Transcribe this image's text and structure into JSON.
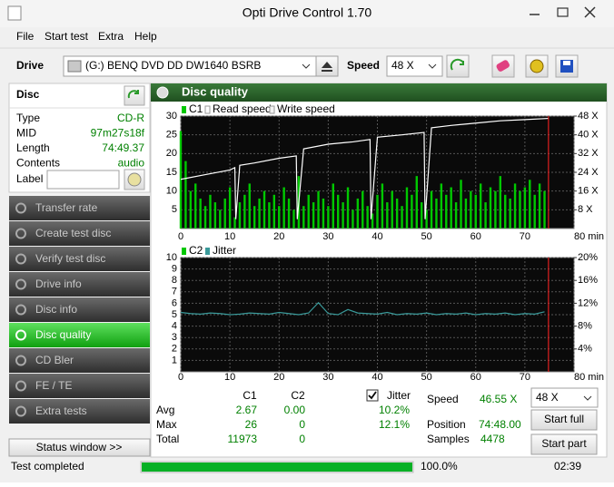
{
  "window": {
    "title": "Opti Drive Control 1.70"
  },
  "menu": [
    "File",
    "Start test",
    "Extra",
    "Help"
  ],
  "toolbar": {
    "drive_label": "Drive",
    "drive": "(G:)  BENQ DVD DD DW1640 BSRB",
    "speed_label": "Speed",
    "speed": "48 X"
  },
  "disc": {
    "title": "Disc",
    "fields": [
      {
        "label": "Type",
        "value": "CD-R"
      },
      {
        "label": "MID",
        "value": "97m27s18f"
      },
      {
        "label": "Length",
        "value": "74:49.37"
      },
      {
        "label": "Contents",
        "value": "audio"
      }
    ],
    "label_field": "Label"
  },
  "nav": {
    "items": [
      "Transfer rate",
      "Create test disc",
      "Verify test disc",
      "Drive info",
      "Disc info",
      "Disc quality",
      "CD Bler",
      "FE / TE",
      "Extra tests"
    ],
    "active": 5
  },
  "status_window": "Status window >>",
  "panel": {
    "title": "Disc quality"
  },
  "chart_data": [
    {
      "type": "bar",
      "grid": true,
      "end_marker_x": 74.8,
      "x": [
        0,
        1,
        2,
        3,
        4,
        5,
        6,
        7,
        8,
        9,
        10,
        11,
        12,
        13,
        14,
        15,
        16,
        17,
        18,
        19,
        20,
        21,
        22,
        23,
        24,
        25,
        26,
        27,
        28,
        29,
        30,
        31,
        32,
        33,
        34,
        35,
        36,
        37,
        38,
        39,
        40,
        41,
        42,
        43,
        44,
        45,
        46,
        47,
        48,
        49,
        50,
        51,
        52,
        53,
        54,
        55,
        56,
        57,
        58,
        59,
        60,
        61,
        62,
        63,
        64,
        65,
        66,
        67,
        68,
        69,
        70,
        71,
        72,
        73,
        74
      ],
      "xlim": [
        0,
        80
      ],
      "xticks": [
        0,
        10,
        20,
        30,
        40,
        50,
        60,
        70,
        {
          "value": 80,
          "label": "80 min"
        }
      ],
      "ylim": [
        0,
        30
      ],
      "yticks": [
        5,
        10,
        15,
        20,
        25,
        30
      ],
      "y2lim": [
        0,
        48
      ],
      "y2ticks": [
        {
          "value": 8,
          "label": "8 X"
        },
        {
          "value": 16,
          "label": "16 X"
        },
        {
          "value": 24,
          "label": "24 X"
        },
        {
          "value": 32,
          "label": "32 X"
        },
        {
          "value": 40,
          "label": "40 X"
        },
        {
          "value": 48,
          "label": "48 X"
        }
      ],
      "series": [
        {
          "name": "C1",
          "type": "bar",
          "color": "#00c800",
          "values": [
            26,
            18,
            10,
            12,
            8,
            6,
            9,
            7,
            5,
            8,
            11,
            3,
            7,
            9,
            12,
            6,
            8,
            10,
            7,
            9,
            6,
            11,
            8,
            5,
            14,
            6,
            9,
            7,
            10,
            8,
            6,
            12,
            9,
            7,
            11,
            5,
            8,
            10,
            6,
            4,
            9,
            12,
            7,
            10,
            8,
            6,
            11,
            9,
            14,
            7,
            5,
            10,
            8,
            12,
            9,
            11,
            7,
            13,
            8,
            10,
            9,
            12,
            7,
            11,
            10,
            14,
            9,
            8,
            12,
            10,
            11,
            13,
            9,
            12,
            10
          ]
        },
        {
          "name": "Read speed",
          "type": "line",
          "axis": "y2",
          "color": "#ffffff",
          "x": [
            0,
            5,
            10,
            11,
            11.2,
            12,
            15,
            20,
            23.5,
            23.7,
            25,
            30,
            35,
            38.5,
            38.7,
            40,
            45,
            49.5,
            49.7,
            51,
            55,
            60,
            65,
            70,
            74.8
          ],
          "values": [
            21,
            23,
            25,
            26,
            4,
            27,
            28,
            30,
            31,
            4,
            34,
            36,
            37,
            38,
            4,
            39,
            40,
            41,
            4,
            43,
            44,
            45,
            46,
            46.5,
            47
          ]
        },
        {
          "name": "Write speed",
          "type": "line",
          "axis": "y2",
          "color": "#f4f4f4",
          "values": [
            null,
            null,
            null,
            null,
            null,
            null,
            null,
            null,
            null,
            null,
            null,
            null,
            null,
            null,
            null,
            null,
            null,
            null,
            null,
            null,
            null,
            null,
            null,
            null,
            null,
            null,
            null,
            null,
            null,
            null,
            null,
            null,
            null,
            null,
            null,
            null,
            null,
            null,
            null,
            null,
            null,
            null,
            null,
            null,
            null,
            null,
            null,
            null,
            null,
            null,
            null,
            null,
            null,
            null,
            null,
            null,
            null,
            null,
            null,
            null,
            null,
            null,
            null,
            null,
            null,
            null,
            null,
            null,
            null,
            null,
            null,
            null,
            null,
            null,
            null
          ]
        }
      ]
    },
    {
      "type": "bar",
      "grid": true,
      "end_marker_x": 74.8,
      "x": [
        0,
        1,
        2,
        3,
        4,
        5,
        6,
        7,
        8,
        9,
        10,
        11,
        12,
        13,
        14,
        15,
        16,
        17,
        18,
        19,
        20,
        21,
        22,
        23,
        24,
        25,
        26,
        27,
        28,
        29,
        30,
        31,
        32,
        33,
        34,
        35,
        36,
        37,
        38,
        39,
        40,
        41,
        42,
        43,
        44,
        45,
        46,
        47,
        48,
        49,
        50,
        51,
        52,
        53,
        54,
        55,
        56,
        57,
        58,
        59,
        60,
        61,
        62,
        63,
        64,
        65,
        66,
        67,
        68,
        69,
        70,
        71,
        72,
        73,
        74
      ],
      "xlim": [
        0,
        80
      ],
      "xticks": [
        0,
        10,
        20,
        30,
        40,
        50,
        60,
        70,
        {
          "value": 80,
          "label": "80 min"
        }
      ],
      "ylim": [
        0,
        10
      ],
      "yticks": [
        1,
        2,
        3,
        4,
        5,
        6,
        7,
        8,
        9,
        10
      ],
      "y2lim": [
        0,
        20
      ],
      "y2ticks": [
        {
          "value": 4,
          "label": "4%"
        },
        {
          "value": 8,
          "label": "8%"
        },
        {
          "value": 12,
          "label": "12%"
        },
        {
          "value": 16,
          "label": "16%"
        },
        {
          "value": 20,
          "label": "20%"
        }
      ],
      "series": [
        {
          "name": "C2",
          "type": "bar",
          "color": "#00c800",
          "values": [
            0,
            0,
            0,
            0,
            0,
            0,
            0,
            0,
            0,
            0,
            0,
            0,
            0,
            0,
            0,
            0,
            0,
            0,
            0,
            0,
            0,
            0,
            0,
            0,
            0,
            0,
            0,
            0,
            0,
            0,
            0,
            0,
            0,
            0,
            0,
            0,
            0,
            0,
            0,
            0,
            0,
            0,
            0,
            0,
            0,
            0,
            0,
            0,
            0,
            0,
            0,
            0,
            0,
            0,
            0,
            0,
            0,
            0,
            0,
            0,
            0,
            0,
            0,
            0,
            0,
            0,
            0,
            0,
            0,
            0,
            0,
            0,
            0,
            0,
            0
          ]
        },
        {
          "name": "Jitter",
          "type": "line",
          "axis": "y2",
          "color": "#3a9a9a",
          "x": [
            0,
            2,
            4,
            6,
            8,
            10,
            12,
            14,
            16,
            18,
            20,
            22,
            24,
            26,
            28,
            30,
            32,
            34,
            36,
            38,
            40,
            42,
            44,
            46,
            48,
            50,
            52,
            54,
            56,
            58,
            60,
            62,
            64,
            66,
            68,
            70,
            72,
            74
          ],
          "values": [
            10.4,
            10.2,
            10.1,
            10.3,
            10.2,
            10.0,
            10.1,
            10.3,
            10.2,
            10.1,
            10.4,
            10.2,
            10.0,
            10.3,
            12.1,
            10.2,
            10.0,
            10.9,
            10.3,
            10.2,
            10.1,
            10.4,
            10.0,
            10.2,
            10.1,
            10.3,
            10.0,
            10.2,
            10.1,
            10.3,
            10.0,
            10.2,
            10.1,
            10.3,
            10.0,
            10.2,
            10.1,
            10.5
          ]
        }
      ]
    }
  ],
  "stats": {
    "headers": [
      "C1",
      "C2",
      "Jitter"
    ],
    "jitter_checked": true,
    "rows": [
      {
        "label": "Avg",
        "values": [
          "2.67",
          "0.00",
          "10.2%"
        ]
      },
      {
        "label": "Max",
        "values": [
          "26",
          "0",
          "12.1%"
        ]
      },
      {
        "label": "Total",
        "values": [
          "11973",
          "0"
        ]
      }
    ]
  },
  "controls": {
    "speed_label": "Speed",
    "speed_value": "46.55 X",
    "speed_select": "48 X",
    "start_full": "Start full",
    "position_label": "Position",
    "position_value": "74:48.00",
    "samples_label": "Samples",
    "samples_value": "4478",
    "start_part": "Start part"
  },
  "status_bar": {
    "message": "Test completed",
    "progress": 100,
    "progress_label": "100.0%",
    "time": "02:39"
  }
}
